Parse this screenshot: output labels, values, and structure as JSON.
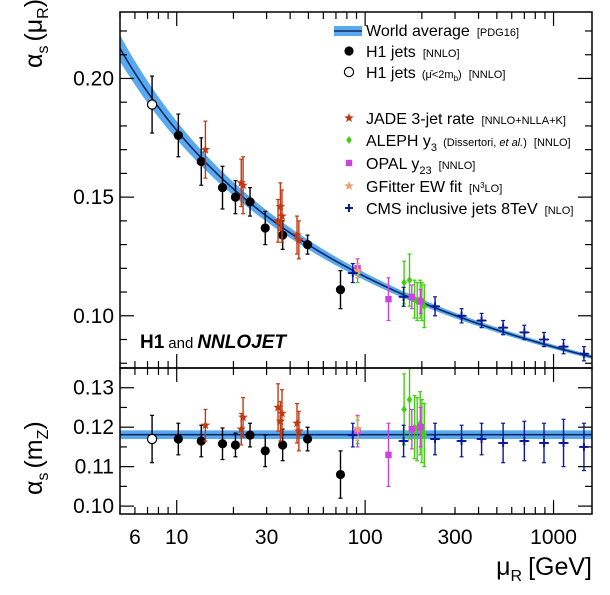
{
  "chart_data": {
    "type": "scatter",
    "x_scale": "log",
    "xlim": [
      5,
      1600
    ],
    "xlabel": "μ",
    "xlabel_sub": "R",
    "xlabel_unit": "[GeV]",
    "x_ticks": [
      6,
      10,
      30,
      100,
      300,
      1000
    ],
    "x_tick_labels": [
      "6",
      "10",
      "30",
      "100",
      "300",
      "1000"
    ],
    "annotation": {
      "prefix": "H1",
      "middle": "and",
      "suffix": "NNLOJET"
    },
    "colors": {
      "band": "#5aa8ee",
      "curve": "#0a2a66",
      "h1": "#000000",
      "jade": "#c03a14",
      "aleph": "#44cc11",
      "opal": "#cc44dd",
      "gfitter": "#f0a070",
      "cms": "#0a1a99"
    },
    "panels": [
      {
        "name": "top",
        "ylabel": "α",
        "ylabel_sub": "s",
        "ylabel_paren": "(μ",
        "ylabel_paren_sub": "R",
        "ylim": [
          0.078,
          0.228
        ],
        "y_ticks": [
          0.1,
          0.15,
          0.2
        ],
        "y_tick_labels": [
          "0.10",
          "0.15",
          "0.20"
        ],
        "world_average_curve": true
      },
      {
        "name": "bottom",
        "ylabel": "α",
        "ylabel_sub": "s",
        "ylabel_paren": "(m",
        "ylabel_paren_sub": "Z",
        "ylim": [
          0.098,
          0.135
        ],
        "y_ticks": [
          0.1,
          0.11,
          0.12,
          0.13
        ],
        "y_tick_labels": [
          "0.10",
          "0.11",
          "0.12",
          "0.13"
        ],
        "world_average_value": 0.1181,
        "world_average_band": 0.0011
      }
    ],
    "legend": [
      {
        "key": "world",
        "label": "World average",
        "tag": "[PDG16]",
        "marker": "band"
      },
      {
        "key": "h1",
        "label": "H1 jets",
        "tag": "[NNLO]",
        "marker": "filled-circle"
      },
      {
        "key": "h1open",
        "label": "H1 jets",
        "tag": "[NNLO]",
        "extra": "(μ̄<2m",
        "extra_sub": "b",
        "extra_tail": ")",
        "marker": "open-circle"
      },
      {
        "key": "jade",
        "label": "JADE 3-jet rate",
        "tag": "[NNLO+NLLA+K]",
        "marker": "star"
      },
      {
        "key": "aleph",
        "label": "ALEPH y",
        "label_sub": "3",
        "extra": "(Dissertori,",
        "extra_italic": "et al.",
        "extra_tail": ")",
        "tag": "[NNLO]",
        "marker": "diamond"
      },
      {
        "key": "opal",
        "label": "OPAL y",
        "label_sub": "23",
        "tag": "[NNLO]",
        "marker": "square"
      },
      {
        "key": "gfitter",
        "label": "GFitter EW fit",
        "tag": "[N",
        "tag_sup": "3",
        "tag_tail": "LO]",
        "marker": "star"
      },
      {
        "key": "cms",
        "label": "CMS inclusive jets 8TeV",
        "tag": "[NLO]",
        "marker": "cross"
      }
    ],
    "series": [
      {
        "name": "H1 jets",
        "key": "h1",
        "marker": "filled-circle",
        "top": [
          [
            10.2,
            0.176,
            0.009
          ],
          [
            13.5,
            0.165,
            0.01
          ],
          [
            17.5,
            0.154,
            0.009
          ],
          [
            20.5,
            0.15,
            0.007
          ],
          [
            24.5,
            0.148,
            0.006
          ],
          [
            29.5,
            0.137,
            0.007
          ],
          [
            36.5,
            0.134,
            0.006
          ],
          [
            49.5,
            0.13,
            0.004
          ],
          [
            74,
            0.111,
            0.008
          ]
        ],
        "bottom": [
          [
            10.2,
            0.117,
            0.004
          ],
          [
            13.5,
            0.1165,
            0.004
          ],
          [
            17.5,
            0.1158,
            0.004
          ],
          [
            20.5,
            0.1155,
            0.003
          ],
          [
            24.5,
            0.118,
            0.003
          ],
          [
            29.5,
            0.114,
            0.004
          ],
          [
            36.5,
            0.1155,
            0.004
          ],
          [
            49.5,
            0.117,
            0.003
          ],
          [
            74,
            0.108,
            0.006
          ]
        ]
      },
      {
        "name": "H1 jets (μ̄<2mb)",
        "key": "h1open",
        "marker": "open-circle",
        "top": [
          [
            7.4,
            0.189,
            0.012
          ]
        ],
        "bottom": [
          [
            7.4,
            0.117,
            0.006
          ]
        ]
      },
      {
        "name": "JADE 3-jet rate",
        "key": "jade",
        "marker": "star",
        "top": [
          [
            14.2,
            0.17,
            0.012
          ],
          [
            22,
            0.156,
            0.01
          ],
          [
            22.5,
            0.155,
            0.012
          ],
          [
            34.5,
            0.14,
            0.009
          ],
          [
            35.5,
            0.146,
            0.01
          ],
          [
            36.2,
            0.142,
            0.011
          ],
          [
            43.5,
            0.134,
            0.008
          ],
          [
            44.5,
            0.132,
            0.008
          ]
        ],
        "bottom": [
          [
            14.2,
            0.1205,
            0.004
          ],
          [
            22,
            0.1195,
            0.004
          ],
          [
            22.5,
            0.1225,
            0.005
          ],
          [
            34.5,
            0.125,
            0.006
          ],
          [
            35.5,
            0.1215,
            0.005
          ],
          [
            36.2,
            0.1235,
            0.006
          ],
          [
            43.5,
            0.121,
            0.005
          ],
          [
            44.5,
            0.119,
            0.005
          ]
        ]
      },
      {
        "name": "ALEPH y3",
        "key": "aleph",
        "marker": "diamond",
        "top": [
          [
            91.2,
            0.118,
            0.004
          ],
          [
            161,
            0.114,
            0.009
          ],
          [
            172,
            0.115,
            0.011
          ],
          [
            183,
            0.107,
            0.008
          ],
          [
            189,
            0.106,
            0.008
          ],
          [
            196,
            0.107,
            0.008
          ],
          [
            200,
            0.106,
            0.008
          ],
          [
            206,
            0.104,
            0.009
          ]
        ],
        "bottom": [
          [
            91.2,
            0.1188,
            0.003
          ],
          [
            161,
            0.1245,
            0.009
          ],
          [
            172,
            0.127,
            0.01
          ],
          [
            183,
            0.12,
            0.008
          ],
          [
            189,
            0.1195,
            0.008
          ],
          [
            196,
            0.121,
            0.008
          ],
          [
            200,
            0.119,
            0.008
          ],
          [
            206,
            0.118,
            0.008
          ]
        ]
      },
      {
        "name": "OPAL y23",
        "key": "opal",
        "marker": "square",
        "top": [
          [
            91.2,
            0.12,
            0.004
          ],
          [
            133,
            0.107,
            0.009
          ],
          [
            177,
            0.108,
            0.005
          ],
          [
            197,
            0.106,
            0.005
          ]
        ],
        "bottom": [
          [
            91.2,
            0.119,
            0.004
          ],
          [
            133,
            0.113,
            0.008
          ],
          [
            177,
            0.1195,
            0.005
          ],
          [
            197,
            0.12,
            0.005
          ]
        ]
      },
      {
        "name": "GFitter EW fit",
        "key": "gfitter",
        "marker": "star",
        "top": [
          [
            91.2,
            0.119,
            0.003
          ]
        ],
        "bottom": [
          [
            91.2,
            0.1196,
            0.003
          ]
        ]
      },
      {
        "name": "CMS inclusive jets 8TeV",
        "key": "cms",
        "marker": "cross",
        "top": [
          [
            86,
            0.118,
            0.004
          ],
          [
            160,
            0.108,
            0.004
          ],
          [
            235,
            0.104,
            0.004
          ],
          [
            325,
            0.1,
            0.003
          ],
          [
            415,
            0.098,
            0.003
          ],
          [
            540,
            0.095,
            0.003
          ],
          [
            700,
            0.093,
            0.003
          ],
          [
            890,
            0.09,
            0.003
          ],
          [
            1130,
            0.087,
            0.003
          ],
          [
            1450,
            0.084,
            0.003
          ]
        ],
        "bottom": [
          [
            86,
            0.118,
            0.003
          ],
          [
            160,
            0.1165,
            0.004
          ],
          [
            235,
            0.117,
            0.004
          ],
          [
            325,
            0.1165,
            0.004
          ],
          [
            415,
            0.117,
            0.004
          ],
          [
            540,
            0.116,
            0.005
          ],
          [
            700,
            0.1165,
            0.005
          ],
          [
            890,
            0.116,
            0.005
          ],
          [
            1130,
            0.116,
            0.006
          ],
          [
            1450,
            0.115,
            0.006
          ]
        ]
      }
    ]
  }
}
